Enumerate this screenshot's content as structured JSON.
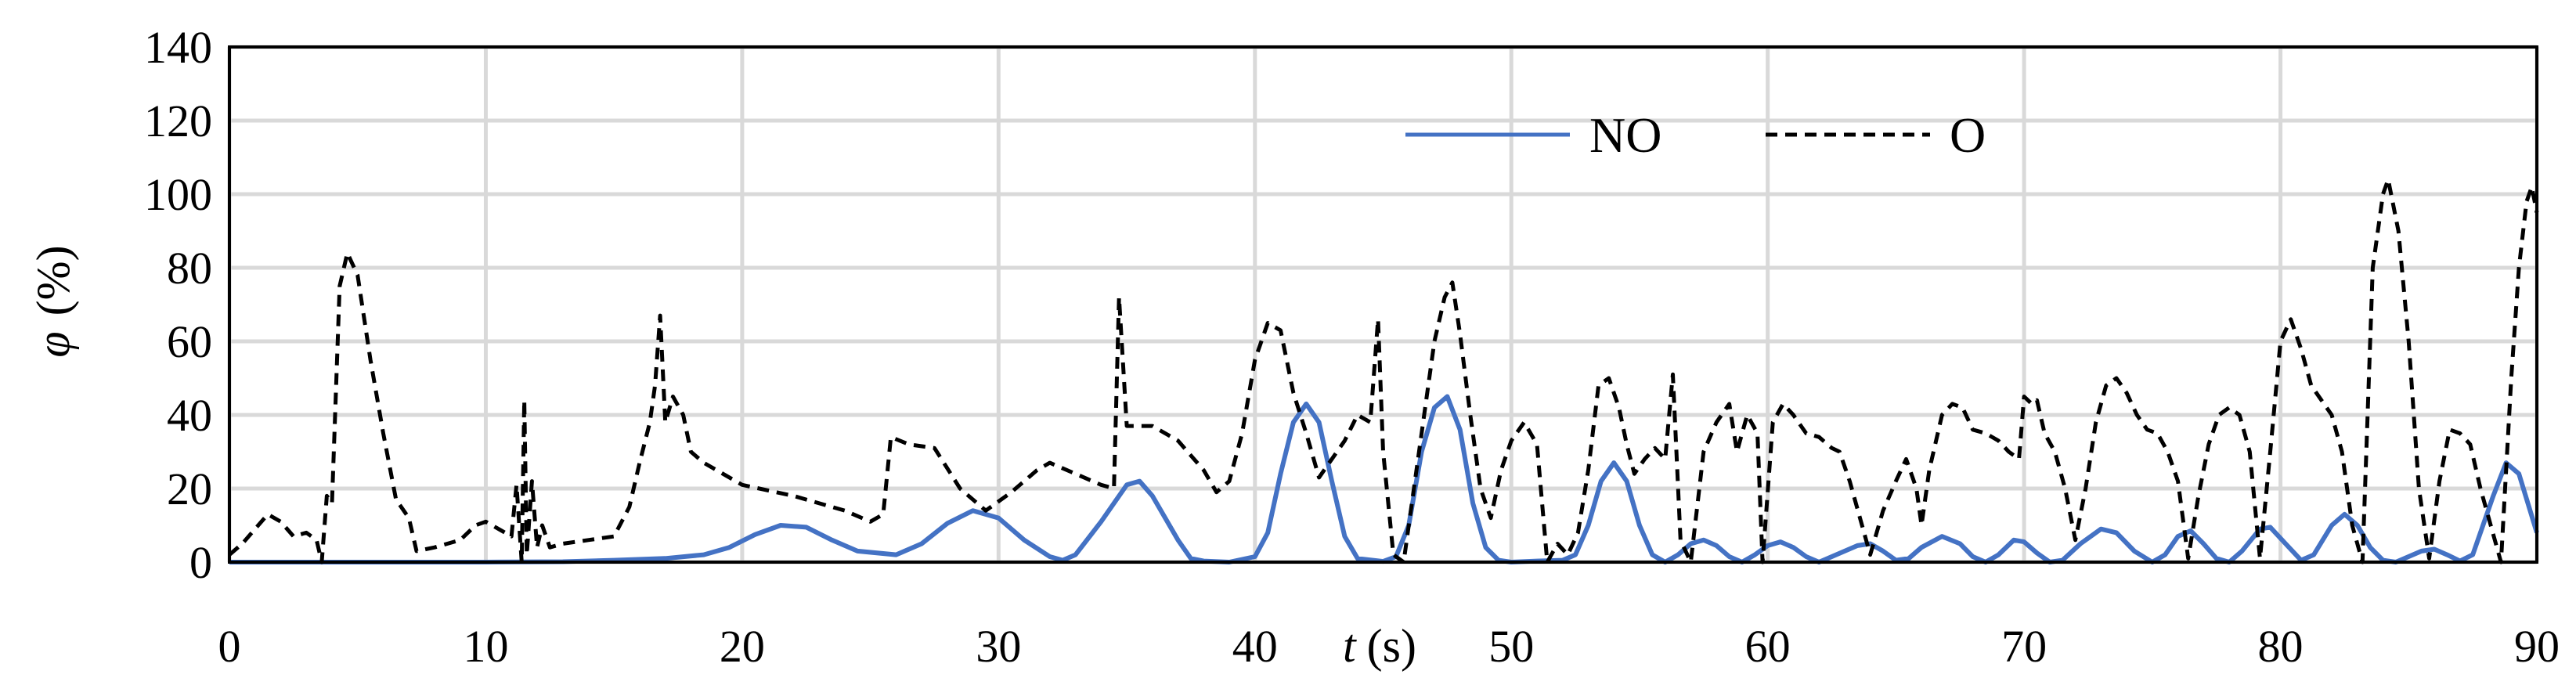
{
  "chart_data": {
    "type": "line",
    "title": "",
    "xlabel": {
      "symbol": "t",
      "unit": "(s)"
    },
    "ylabel": {
      "symbol": "φ",
      "unit": "(%)"
    },
    "xlim": [
      0,
      90
    ],
    "ylim": [
      0,
      140
    ],
    "x_ticks": [
      0,
      10,
      20,
      30,
      40,
      50,
      60,
      70,
      80,
      90
    ],
    "y_ticks": [
      0,
      20,
      40,
      60,
      80,
      100,
      120,
      140
    ],
    "grid": true,
    "legend": "top-right",
    "series": [
      {
        "name": "NO",
        "style": "solid",
        "color": "#4472C4",
        "points": [
          [
            0,
            0
          ],
          [
            5,
            0
          ],
          [
            10,
            0
          ],
          [
            13,
            0.1
          ],
          [
            15,
            0.5
          ],
          [
            17,
            1
          ],
          [
            18.5,
            2
          ],
          [
            19.5,
            4
          ],
          [
            20.5,
            7.5
          ],
          [
            21.5,
            10
          ],
          [
            22.5,
            9.5
          ],
          [
            23.5,
            6
          ],
          [
            24.5,
            3
          ],
          [
            26,
            2
          ],
          [
            27,
            5
          ],
          [
            28,
            10.5
          ],
          [
            29,
            14
          ],
          [
            30,
            12
          ],
          [
            31,
            6
          ],
          [
            32,
            1.5
          ],
          [
            32.5,
            0.5
          ],
          [
            33,
            2
          ],
          [
            34,
            11
          ],
          [
            35,
            21
          ],
          [
            35.5,
            22
          ],
          [
            36,
            18
          ],
          [
            37,
            6
          ],
          [
            37.5,
            1
          ],
          [
            38,
            0.3
          ],
          [
            39,
            0
          ],
          [
            40,
            1.5
          ],
          [
            40.5,
            8
          ],
          [
            41,
            24
          ],
          [
            41.5,
            38
          ],
          [
            42,
            43
          ],
          [
            42.5,
            38
          ],
          [
            43,
            22
          ],
          [
            43.5,
            7
          ],
          [
            44,
            1
          ],
          [
            45,
            0.2
          ],
          [
            45.5,
            1.5
          ],
          [
            46,
            10
          ],
          [
            46.5,
            30
          ],
          [
            47,
            42
          ],
          [
            47.5,
            45
          ],
          [
            48,
            36
          ],
          [
            48.5,
            16
          ],
          [
            49,
            4
          ],
          [
            49.5,
            0.5
          ],
          [
            50,
            0
          ],
          [
            51,
            0.3
          ],
          [
            52,
            0.5
          ],
          [
            52.5,
            2
          ],
          [
            53,
            10
          ],
          [
            53.5,
            22
          ],
          [
            54,
            27
          ],
          [
            54.5,
            22
          ],
          [
            55,
            10
          ],
          [
            55.5,
            2
          ],
          [
            56,
            0
          ],
          [
            56.5,
            2
          ],
          [
            57,
            5
          ],
          [
            57.5,
            6
          ],
          [
            58,
            4.5
          ],
          [
            58.5,
            1.5
          ],
          [
            59,
            0
          ],
          [
            59.5,
            2
          ],
          [
            60,
            4.5
          ],
          [
            60.5,
            5.5
          ],
          [
            61,
            4
          ],
          [
            61.5,
            1.5
          ],
          [
            62,
            0
          ],
          [
            62.5,
            1.5
          ],
          [
            63.5,
            4.5
          ],
          [
            64,
            5
          ],
          [
            64.5,
            3
          ],
          [
            65,
            0.5
          ],
          [
            65.5,
            1
          ],
          [
            66,
            4
          ],
          [
            66.8,
            7
          ],
          [
            67.5,
            5
          ],
          [
            68,
            1.5
          ],
          [
            68.5,
            0
          ],
          [
            69,
            2
          ],
          [
            69.6,
            6
          ],
          [
            70,
            5.5
          ],
          [
            70.5,
            2.5
          ],
          [
            71,
            0
          ],
          [
            71.5,
            0.5
          ],
          [
            72.2,
            5
          ],
          [
            73,
            9
          ],
          [
            73.6,
            8
          ],
          [
            74.3,
            3
          ],
          [
            75,
            0
          ],
          [
            75.5,
            2
          ],
          [
            76,
            7
          ],
          [
            76.5,
            8.5
          ],
          [
            77,
            5
          ],
          [
            77.5,
            1
          ],
          [
            78,
            0
          ],
          [
            78.5,
            3
          ],
          [
            79.2,
            9
          ],
          [
            79.6,
            9.5
          ],
          [
            80.2,
            5
          ],
          [
            80.8,
            0.5
          ],
          [
            81.3,
            2
          ],
          [
            82,
            10
          ],
          [
            82.5,
            13
          ],
          [
            83,
            10
          ],
          [
            83.5,
            4
          ],
          [
            84,
            0.5
          ],
          [
            84.5,
            0
          ],
          [
            85.5,
            3
          ],
          [
            86,
            3.5
          ],
          [
            86.5,
            2
          ],
          [
            87,
            0.3
          ],
          [
            87.5,
            2
          ],
          [
            88.3,
            18
          ],
          [
            88.8,
            27
          ],
          [
            89.3,
            24
          ],
          [
            90,
            8
          ]
        ]
      },
      {
        "name": "O",
        "style": "dashed",
        "color": "#000000",
        "points": [
          [
            0,
            2
          ],
          [
            0.5,
            5
          ],
          [
            1,
            9
          ],
          [
            1.5,
            13
          ],
          [
            2,
            11
          ],
          [
            2.5,
            7
          ],
          [
            3,
            8
          ],
          [
            3.4,
            6
          ],
          [
            3.6,
            0
          ],
          [
            3.8,
            18
          ],
          [
            4,
            16
          ],
          [
            4.3,
            75
          ],
          [
            4.6,
            84
          ],
          [
            5,
            78
          ],
          [
            5.5,
            55
          ],
          [
            6,
            35
          ],
          [
            6.5,
            17
          ],
          [
            7,
            12
          ],
          [
            7.3,
            3
          ],
          [
            8,
            4
          ],
          [
            9,
            6
          ],
          [
            9.6,
            10
          ],
          [
            10,
            11
          ],
          [
            10.5,
            9
          ],
          [
            11,
            7
          ],
          [
            11.2,
            21
          ],
          [
            11.4,
            0
          ],
          [
            11.5,
            44
          ],
          [
            11.6,
            2
          ],
          [
            11.8,
            22
          ],
          [
            12,
            4
          ],
          [
            12.2,
            10
          ],
          [
            12.5,
            4
          ],
          [
            13,
            5
          ],
          [
            14,
            6
          ],
          [
            15,
            7
          ],
          [
            15.6,
            15
          ],
          [
            16,
            27
          ],
          [
            16.4,
            38
          ],
          [
            16.6,
            48
          ],
          [
            16.8,
            67
          ],
          [
            17,
            38
          ],
          [
            17.3,
            45
          ],
          [
            17.7,
            40
          ],
          [
            18,
            30
          ],
          [
            18.5,
            27
          ],
          [
            20,
            21
          ],
          [
            22,
            18
          ],
          [
            24,
            14
          ],
          [
            25,
            11
          ],
          [
            25.5,
            13
          ],
          [
            25.8,
            34
          ],
          [
            26.5,
            32
          ],
          [
            27.5,
            31
          ],
          [
            28.5,
            20
          ],
          [
            29.5,
            14
          ],
          [
            30.5,
            19
          ],
          [
            31.5,
            25
          ],
          [
            32,
            27
          ],
          [
            33,
            24
          ],
          [
            34,
            21
          ],
          [
            34.5,
            20
          ],
          [
            34.7,
            72
          ],
          [
            35,
            37
          ],
          [
            36,
            37
          ],
          [
            37,
            33
          ],
          [
            38,
            25
          ],
          [
            38.5,
            19
          ],
          [
            39,
            22
          ],
          [
            39.5,
            35
          ],
          [
            40,
            55
          ],
          [
            40.5,
            65
          ],
          [
            41,
            63
          ],
          [
            41.5,
            46
          ],
          [
            42,
            35
          ],
          [
            42.5,
            23
          ],
          [
            43,
            28
          ],
          [
            43.5,
            33
          ],
          [
            44,
            40
          ],
          [
            44.5,
            38
          ],
          [
            44.8,
            66
          ],
          [
            45,
            30
          ],
          [
            45.4,
            2
          ],
          [
            45.8,
            0
          ],
          [
            46.2,
            20
          ],
          [
            46.6,
            40
          ],
          [
            47,
            60
          ],
          [
            47.4,
            72
          ],
          [
            47.7,
            76
          ],
          [
            48,
            62
          ],
          [
            48.4,
            40
          ],
          [
            48.8,
            20
          ],
          [
            49.2,
            12
          ],
          [
            49.6,
            25
          ],
          [
            50,
            33
          ],
          [
            50.5,
            38
          ],
          [
            51,
            32
          ],
          [
            51.4,
            0
          ],
          [
            51.8,
            5
          ],
          [
            52.2,
            2
          ],
          [
            52.6,
            8
          ],
          [
            53,
            25
          ],
          [
            53.4,
            48
          ],
          [
            53.8,
            50
          ],
          [
            54.2,
            42
          ],
          [
            54.5,
            32
          ],
          [
            54.8,
            24
          ],
          [
            55.2,
            28
          ],
          [
            55.6,
            31
          ],
          [
            56,
            28
          ],
          [
            56.3,
            51
          ],
          [
            56.6,
            6
          ],
          [
            57,
            0
          ],
          [
            57.5,
            30
          ],
          [
            58,
            38
          ],
          [
            58.5,
            43
          ],
          [
            58.8,
            30
          ],
          [
            59.2,
            40
          ],
          [
            59.6,
            35
          ],
          [
            59.8,
            0
          ],
          [
            60.2,
            38
          ],
          [
            60.6,
            43
          ],
          [
            61,
            40
          ],
          [
            61.5,
            35
          ],
          [
            62,
            34
          ],
          [
            62.5,
            31
          ],
          [
            62.8,
            30
          ],
          [
            63.2,
            22
          ],
          [
            63.6,
            12
          ],
          [
            64,
            2
          ],
          [
            64.5,
            14
          ],
          [
            65,
            22
          ],
          [
            65.4,
            28
          ],
          [
            65.8,
            20
          ],
          [
            66,
            10
          ],
          [
            66.3,
            25
          ],
          [
            66.8,
            40
          ],
          [
            67.2,
            43
          ],
          [
            67.6,
            42
          ],
          [
            68,
            36
          ],
          [
            68.5,
            35
          ],
          [
            69,
            33
          ],
          [
            69.4,
            30
          ],
          [
            69.8,
            28
          ],
          [
            70,
            45
          ],
          [
            70.3,
            43
          ],
          [
            70.5,
            44
          ],
          [
            70.8,
            35
          ],
          [
            71.2,
            30
          ],
          [
            71.6,
            20
          ],
          [
            72,
            6
          ],
          [
            72.4,
            20
          ],
          [
            72.8,
            38
          ],
          [
            73.2,
            48
          ],
          [
            73.6,
            50
          ],
          [
            74,
            46
          ],
          [
            74.4,
            40
          ],
          [
            74.8,
            36
          ],
          [
            75.2,
            35
          ],
          [
            75.6,
            30
          ],
          [
            76,
            22
          ],
          [
            76.4,
            1
          ],
          [
            76.8,
            18
          ],
          [
            77.2,
            32
          ],
          [
            77.6,
            40
          ],
          [
            78,
            42
          ],
          [
            78.4,
            40
          ],
          [
            78.8,
            30
          ],
          [
            79.2,
            1
          ],
          [
            79.6,
            30
          ],
          [
            80,
            60
          ],
          [
            80.4,
            66
          ],
          [
            80.8,
            58
          ],
          [
            81.2,
            48
          ],
          [
            81.6,
            44
          ],
          [
            82,
            40
          ],
          [
            82.4,
            30
          ],
          [
            82.8,
            10
          ],
          [
            83.2,
            0
          ],
          [
            83.6,
            80
          ],
          [
            84,
            100
          ],
          [
            84.2,
            104
          ],
          [
            84.6,
            90
          ],
          [
            85,
            60
          ],
          [
            85.4,
            20
          ],
          [
            85.8,
            1
          ],
          [
            86.2,
            22
          ],
          [
            86.6,
            36
          ],
          [
            87,
            35
          ],
          [
            87.4,
            32
          ],
          [
            87.8,
            20
          ],
          [
            88.2,
            10
          ],
          [
            88.6,
            0
          ],
          [
            89,
            50
          ],
          [
            89.3,
            80
          ],
          [
            89.6,
            98
          ],
          [
            89.8,
            102
          ],
          [
            90,
            95
          ]
        ]
      }
    ]
  }
}
